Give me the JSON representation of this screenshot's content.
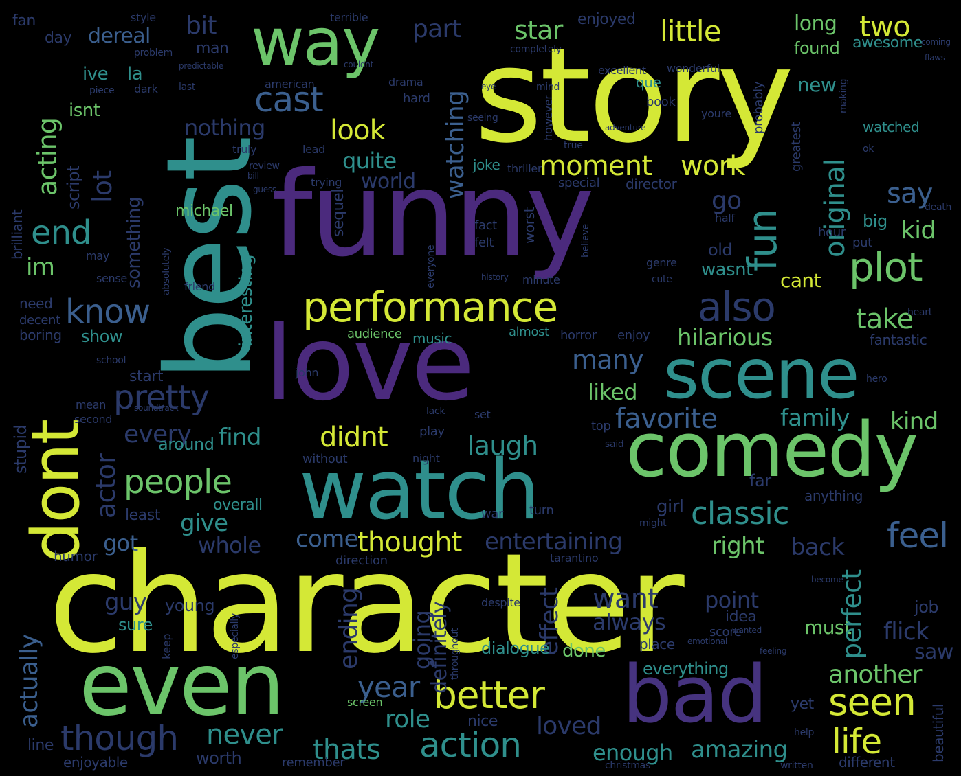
{
  "palette": {
    "yellow": "#d4e836",
    "lime": "#a5d84a",
    "green": "#6cc46a",
    "teal": "#2f8f8c",
    "blue": "#3b5f8e",
    "indigo": "#46337f",
    "purple": "#4b2a7d",
    "navy": "#2b3a6a",
    "background": "#000000"
  },
  "words": {
    "story": "story",
    "funny": "funny",
    "character": "character",
    "best": "best",
    "love": "love",
    "watch": "watch",
    "comedy": "comedy",
    "scene": "scene",
    "even": "even",
    "bad": "bad",
    "way": "way",
    "dont": "dont",
    "performance": "performance",
    "better": "better",
    "seen": "seen",
    "action": "action",
    "life": "life",
    "plot": "plot",
    "also": "also",
    "fun": "fun",
    "pretty": "pretty",
    "though": "though",
    "people": "people",
    "know": "know",
    "end": "end",
    "moment": "moment",
    "work": "work",
    "little": "little",
    "two": "two",
    "look": "look",
    "cast": "cast",
    "classic": "classic",
    "thought": "thought",
    "original": "original",
    "hilarious": "hilarious",
    "take": "take",
    "feel": "feel",
    "another": "another",
    "amazing": "amazing",
    "enough": "enough",
    "never": "never",
    "thats": "thats",
    "loved": "loved",
    "year": "year",
    "role": "role",
    "favorite": "favorite",
    "family": "family",
    "kind": "kind",
    "liked": "liked",
    "many": "many",
    "laugh": "laugh",
    "didnt": "didnt",
    "find": "find",
    "every": "every",
    "actor": "actor",
    "give": "give",
    "got": "got",
    "whole": "whole",
    "come": "come",
    "entertaining": "entertaining",
    "right": "right",
    "back": "back",
    "want": "want",
    "always": "always",
    "point": "point",
    "must": "must",
    "perfect": "perfect",
    "flick": "flick",
    "saw": "saw",
    "effect": "effect",
    "ending": "ending",
    "going": "going",
    "definitely": "definitely",
    "actually": "actually",
    "guy": "guy",
    "sure": "sure",
    "young": "young",
    "done": "done",
    "everything": "everything",
    "dialogue": "dialogue",
    "watching": "watching",
    "world": "world",
    "quite": "quite",
    "nothing": "nothing",
    "star": "star",
    "part": "part",
    "bit": "bit",
    "dereal": "dereal",
    "long": "long",
    "found": "found",
    "awesome": "awesome",
    "new": "new",
    "acting": "acting",
    "lot": "lot",
    "script": "script",
    "im": "im",
    "something": "something",
    "interesting": "interesting",
    "stupid": "stupid",
    "show": "show",
    "boring": "boring",
    "need": "need",
    "decent": "decent",
    "start": "start",
    "around": "around",
    "overall": "overall",
    "least": "least",
    "sequel": "sequel",
    "music": "music",
    "audience": "audience",
    "almost": "almost",
    "horror": "horror",
    "enjoy": "enjoy",
    "director": "director",
    "special": "special",
    "thriller": "thriller",
    "joke": "joke",
    "michael": "michael",
    "brilliant": "brilliant",
    "wasnt": "wasnt",
    "cant": "cant",
    "kid": "kid",
    "big": "big",
    "say": "say",
    "go": "go",
    "old": "old",
    "worst": "worst",
    "fantastic": "fantastic",
    "girl": "girl",
    "far": "far",
    "anything": "anything",
    "worth": "worth",
    "direction": "direction",
    "humor": "humor",
    "yet": "yet",
    "idea": "idea",
    "score": "score",
    "place": "place",
    "job": "job",
    "screen": "screen",
    "different": "different",
    "beautiful": "beautiful",
    "enjoyable": "enjoyable",
    "remember": "remember",
    "line": "line",
    "nice": "nice",
    "isnt": "isnt",
    "ive": "ive",
    "la": "la",
    "man": "man",
    "day": "day",
    "fan": "fan",
    "enjoyed": "enjoyed",
    "style": "style",
    "terrible": "terrible",
    "excellent": "excellent",
    "wonderful": "wonderful",
    "probably": "probably",
    "greatest": "greatest",
    "watched": "watched",
    "book": "book",
    "youre": "youre",
    "que": "que",
    "hard": "hard",
    "drama": "drama",
    "american": "american",
    "dark": "dark",
    "piece": "piece",
    "last": "last",
    "problem": "problem",
    "however": "however",
    "mind": "mind",
    "lead": "lead",
    "truly": "truly",
    "true": "true",
    "review": "review",
    "trying": "trying",
    "fact": "fact",
    "felt": "felt",
    "believe": "believe",
    "everyone": "everyone",
    "minute": "minute",
    "genre": "genre",
    "hour": "hour",
    "put": "put",
    "half": "half",
    "hero": "hero",
    "john": "john",
    "mean": "mean",
    "second": "second",
    "school": "school",
    "friend": "friend",
    "absolutely": "absolutely",
    "sense": "sense",
    "may": "may",
    "play": "play",
    "set": "set",
    "without": "without",
    "night": "night",
    "turn": "turn",
    "might": "might",
    "war": "war",
    "tarantino": "tarantino",
    "keep": "keep",
    "especially": "especially",
    "throughout": "throughout",
    "despite": "despite",
    "help": "help",
    "written": "written",
    "christmas": "christmas",
    "soundtrack": "soundtrack",
    "lack": "lack",
    "top": "top",
    "said": "said",
    "history": "history",
    "emotional": "emotional",
    "wanted": "wanted",
    "become": "become",
    "feeling": "feeling",
    "cute": "cute",
    "death": "death",
    "heart": "heart",
    "ok": "ok",
    "seeing": "seeing",
    "making": "making",
    "completely": "completely",
    "couldnt": "couldnt",
    "predictable": "predictable",
    "coming": "coming",
    "flaws": "flaws",
    "adventure": "adventure",
    "bill": "bill",
    "guess": "guess",
    "eye": "eye"
  }
}
